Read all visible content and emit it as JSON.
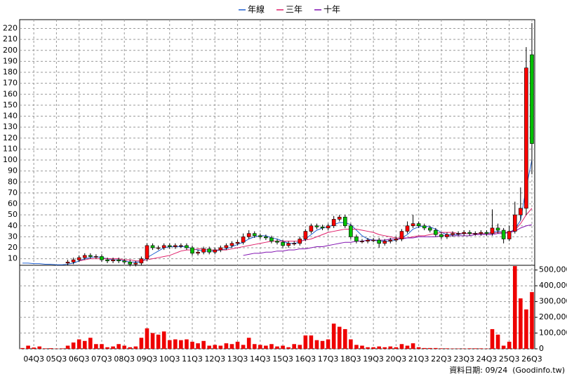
{
  "chart_data": {
    "type": "candlestick",
    "categories": [
      null,
      null,
      "04Q3",
      null,
      null,
      null,
      "05Q3",
      null,
      null,
      null,
      "06Q3",
      null,
      null,
      null,
      "07Q3",
      null,
      null,
      null,
      "08Q3",
      null,
      null,
      null,
      "09Q3",
      null,
      null,
      null,
      "10Q3",
      null,
      null,
      null,
      "11Q3",
      null,
      null,
      null,
      "12Q3",
      null,
      null,
      null,
      "13Q3",
      null,
      null,
      null,
      "14Q3",
      null,
      null,
      null,
      "15Q3",
      null,
      null,
      null,
      "16Q3",
      null,
      null,
      null,
      "17Q3",
      null,
      null,
      null,
      "18Q3",
      null,
      null,
      null,
      "19Q3",
      null,
      null,
      null,
      "20Q3",
      null,
      null,
      null,
      "21Q3",
      null,
      null,
      null,
      "22Q3",
      null,
      null,
      null,
      "23Q3",
      null,
      null,
      null,
      "24Q3",
      null,
      null,
      null,
      "25Q3",
      null,
      null,
      null,
      "26Q3"
    ],
    "open": [
      null,
      null,
      null,
      null,
      null,
      null,
      null,
      null,
      6,
      7,
      9,
      11,
      13,
      12,
      12,
      9,
      8,
      9,
      8,
      7,
      5,
      6,
      10,
      22,
      20,
      20,
      22,
      21,
      22,
      22,
      20,
      15,
      16,
      19,
      16,
      18,
      20,
      22,
      24,
      25,
      30,
      33,
      31,
      30,
      29,
      26,
      25,
      22,
      24,
      24,
      28,
      35,
      40,
      39,
      38,
      40,
      46,
      48,
      40,
      30,
      26,
      26,
      27,
      27,
      24,
      26,
      27,
      28,
      35,
      40,
      42,
      40,
      38,
      36,
      32,
      30,
      32,
      33,
      33,
      34,
      33,
      33,
      34,
      33,
      38,
      36,
      28,
      35,
      50,
      56,
      196
    ],
    "high": [
      null,
      null,
      null,
      null,
      null,
      null,
      null,
      null,
      9,
      11,
      13,
      15,
      15,
      14,
      14,
      11,
      11,
      11,
      10,
      9,
      8,
      12,
      24,
      24,
      22,
      24,
      24,
      24,
      24,
      24,
      22,
      18,
      21,
      21,
      20,
      22,
      24,
      26,
      27,
      33,
      36,
      35,
      33,
      32,
      31,
      28,
      27,
      26,
      26,
      30,
      37,
      42,
      42,
      41,
      42,
      49,
      50,
      50,
      42,
      32,
      28,
      29,
      29,
      29,
      28,
      29,
      30,
      37,
      44,
      50,
      44,
      42,
      40,
      38,
      34,
      34,
      35,
      35,
      36,
      36,
      35,
      36,
      36,
      55,
      42,
      38,
      40,
      62,
      75,
      203,
      225
    ],
    "low": [
      null,
      null,
      null,
      null,
      null,
      null,
      null,
      null,
      4,
      5,
      7,
      9,
      10,
      10,
      7,
      6,
      6,
      6,
      5,
      3,
      3,
      4,
      8,
      18,
      18,
      18,
      19,
      19,
      20,
      18,
      13,
      13,
      14,
      14,
      14,
      16,
      18,
      20,
      22,
      23,
      28,
      29,
      28,
      27,
      24,
      23,
      20,
      20,
      22,
      22,
      26,
      33,
      37,
      36,
      36,
      38,
      44,
      38,
      28,
      24,
      24,
      24,
      25,
      20,
      22,
      24,
      25,
      26,
      33,
      38,
      38,
      36,
      34,
      30,
      28,
      28,
      30,
      31,
      31,
      31,
      31,
      31,
      31,
      31,
      33,
      24,
      26,
      33,
      45,
      50,
      87
    ],
    "close": [
      null,
      null,
      null,
      null,
      null,
      null,
      null,
      null,
      7,
      9,
      11,
      13,
      12,
      12,
      9,
      8,
      9,
      8,
      7,
      5,
      6,
      10,
      22,
      20,
      20,
      22,
      21,
      22,
      22,
      20,
      15,
      16,
      19,
      16,
      18,
      20,
      22,
      24,
      25,
      30,
      33,
      31,
      30,
      29,
      26,
      25,
      22,
      24,
      24,
      28,
      35,
      40,
      39,
      38,
      40,
      46,
      48,
      40,
      30,
      26,
      26,
      27,
      27,
      24,
      26,
      27,
      28,
      35,
      40,
      42,
      40,
      38,
      36,
      32,
      30,
      32,
      33,
      33,
      34,
      33,
      33,
      34,
      33,
      38,
      36,
      28,
      35,
      50,
      56,
      184,
      115
    ],
    "up_color": "#ff0000",
    "down_color": "#00c000",
    "series": [
      {
        "name": "年線",
        "color": "#2060d0",
        "values": [
          6,
          6,
          5.5,
          5.5,
          5,
          5,
          4.5,
          4.5,
          5,
          6,
          8,
          10,
          11,
          12,
          11,
          10,
          9,
          9,
          8,
          7,
          7,
          7,
          11,
          14,
          17,
          20,
          21,
          21,
          21,
          21,
          19,
          18,
          17,
          17,
          17,
          18,
          19,
          21,
          23,
          25,
          28,
          30,
          31,
          31,
          29,
          28,
          26,
          24,
          24,
          25,
          28,
          32,
          36,
          38,
          39,
          41,
          43,
          43,
          41,
          36,
          31,
          28,
          27,
          26,
          26,
          26,
          27,
          29,
          32,
          37,
          39,
          40,
          39,
          37,
          34,
          32,
          32,
          32,
          33,
          33,
          33,
          33,
          33,
          34,
          35,
          34,
          34,
          37,
          45,
          75,
          100
        ]
      },
      {
        "name": "三年",
        "color": "#e0206a",
        "values": [
          null,
          null,
          null,
          null,
          null,
          null,
          null,
          null,
          null,
          null,
          8,
          9,
          10,
          10,
          10,
          10,
          10,
          10,
          9,
          9,
          8,
          8,
          9,
          10,
          11,
          12,
          13,
          15,
          17,
          18,
          18,
          19,
          19,
          18,
          18,
          18,
          18,
          19,
          20,
          21,
          22,
          23,
          24,
          25,
          26,
          26,
          26,
          26,
          26,
          26,
          27,
          28,
          30,
          32,
          34,
          35,
          36,
          37,
          37,
          37,
          36,
          35,
          34,
          32,
          31,
          30,
          29,
          29,
          29,
          30,
          31,
          31,
          32,
          33,
          34,
          34,
          34,
          33,
          33,
          33,
          33,
          33,
          33,
          33,
          34,
          34,
          34,
          36,
          42,
          50,
          56
        ]
      },
      {
        "name": "十年",
        "color": "#8010b0",
        "values": [
          null,
          null,
          null,
          null,
          null,
          null,
          null,
          null,
          null,
          null,
          null,
          null,
          null,
          null,
          null,
          null,
          null,
          null,
          null,
          null,
          null,
          null,
          null,
          null,
          null,
          null,
          null,
          null,
          null,
          null,
          null,
          null,
          null,
          null,
          null,
          null,
          null,
          null,
          null,
          13,
          14,
          15,
          15,
          16,
          16,
          17,
          17,
          18,
          18,
          19,
          19,
          20,
          21,
          21,
          22,
          23,
          24,
          25,
          25,
          26,
          26,
          27,
          27,
          27,
          27,
          28,
          28,
          28,
          29,
          29,
          30,
          30,
          30,
          30,
          31,
          31,
          31,
          31,
          31,
          31,
          32,
          32,
          32,
          32,
          33,
          33,
          34,
          35,
          38,
          40,
          41
        ]
      }
    ],
    "volume": {
      "color": "#ee0000",
      "values": [
        5000,
        20000,
        8000,
        15000,
        3000,
        4000,
        2000,
        3000,
        20000,
        40000,
        60000,
        50000,
        70000,
        30000,
        30000,
        10000,
        15000,
        30000,
        20000,
        10000,
        15000,
        70000,
        130000,
        100000,
        90000,
        110000,
        55000,
        60000,
        55000,
        60000,
        45000,
        35000,
        50000,
        20000,
        25000,
        20000,
        35000,
        30000,
        45000,
        25000,
        70000,
        30000,
        25000,
        20000,
        30000,
        15000,
        20000,
        10000,
        30000,
        25000,
        85000,
        85000,
        55000,
        50000,
        60000,
        160000,
        140000,
        125000,
        60000,
        25000,
        20000,
        10000,
        10000,
        15000,
        10000,
        15000,
        10000,
        30000,
        20000,
        35000,
        10000,
        5000,
        5000,
        5000,
        3000,
        3000,
        2000,
        2000,
        2000,
        3000,
        3000,
        3000,
        2000,
        125000,
        90000,
        20000,
        45000,
        525000,
        320000,
        250000,
        360000
      ]
    },
    "ylim": [
      4,
      228
    ],
    "yticks": [
      10,
      20,
      30,
      40,
      50,
      60,
      70,
      80,
      90,
      100,
      110,
      120,
      130,
      140,
      150,
      160,
      170,
      180,
      190,
      200,
      210,
      220
    ],
    "y2lim": [
      0,
      530000
    ],
    "y2ticks": [
      0,
      {
        "value": 100000,
        "label": "100,000"
      },
      {
        "value": 200000,
        "label": "200,000"
      },
      {
        "value": 300000,
        "label": "300,000"
      },
      {
        "value": 400000,
        "label": "400,000"
      },
      {
        "value": 500000,
        "label": "500,000"
      }
    ],
    "grid": true,
    "legend": "top",
    "footnote": "資料日期: 09/24  (Goodinfo.tw)"
  }
}
